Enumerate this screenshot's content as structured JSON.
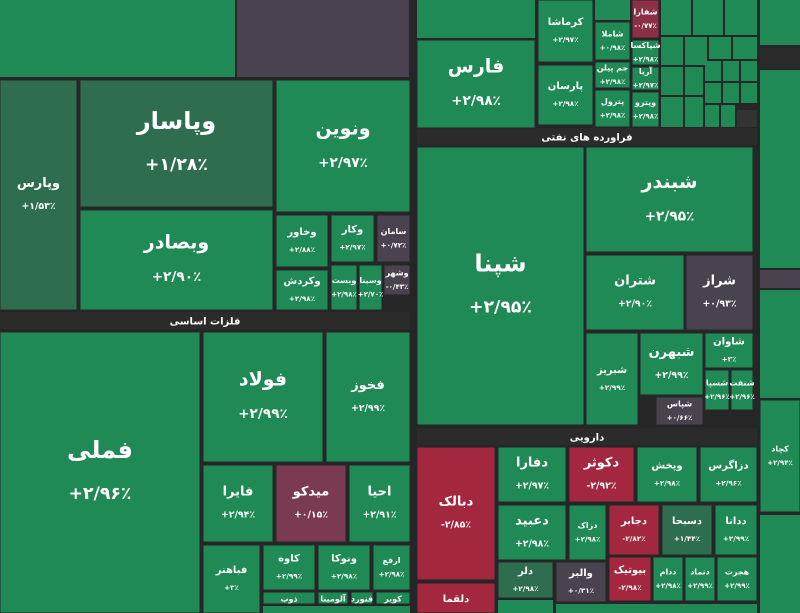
{
  "sections": [
    {
      "label": "فراورده های نفتی"
    },
    {
      "label": "فلزات اساسی"
    },
    {
      "label": "دارویی"
    }
  ],
  "tiles": [
    {
      "name": "وپارس",
      "change": "+۱/۵۳٪",
      "color": "#2e6e4f"
    },
    {
      "name": "وپاسار",
      "change": "+۱/۲۸٪",
      "color": "#2e6e4f"
    },
    {
      "name": "ونوین",
      "change": "+۲/۹۷٪",
      "color": "#1f8a55"
    },
    {
      "name": "وبصادر",
      "change": "+۲/۹۰٪",
      "color": "#1f8a55"
    },
    {
      "name": "وخاور",
      "change": "+۲/۸۸٪",
      "color": "#1f8a55"
    },
    {
      "name": "وکار",
      "change": "+۲/۹۷٪",
      "color": "#1f8a55"
    },
    {
      "name": "سامان",
      "change": "+۰/۷۲٪",
      "color": "#4b4250"
    },
    {
      "name": "وکردش",
      "change": "+۲/۹۸٪",
      "color": "#1f8a55"
    },
    {
      "name": "وبست",
      "change": "+۲/۹۸٪",
      "color": "#1f8a55"
    },
    {
      "name": "وسینا",
      "change": "+۲/۷۰٪",
      "color": "#1f8a55"
    },
    {
      "name": "وشهر",
      "change": "-۰/۴۳٪",
      "color": "#4b4250"
    },
    {
      "name": "فملی",
      "change": "+۲/۹۶٪",
      "color": "#1f8a55"
    },
    {
      "name": "فولاد",
      "change": "+۲/۹۹٪",
      "color": "#1f8a55"
    },
    {
      "name": "فخوز",
      "change": "+۲/۹۹٪",
      "color": "#1f8a55"
    },
    {
      "name": "فایرا",
      "change": "+۲/۹۴٪",
      "color": "#1f8a55"
    },
    {
      "name": "میدکو",
      "change": "+۰/۱۵٪",
      "color": "#7a3a52"
    },
    {
      "name": "احیا",
      "change": "+۲/۹۱٪",
      "color": "#1f8a55"
    },
    {
      "name": "فباهنر",
      "change": "+۳٪",
      "color": "#1f8a55"
    },
    {
      "name": "کاوه",
      "change": "+۲/۹۹٪",
      "color": "#1f8a55"
    },
    {
      "name": "ونوکا",
      "change": "+۲/۹۸٪",
      "color": "#1f8a55"
    },
    {
      "name": "ارفع",
      "change": "+۲/۹۸٪",
      "color": "#1f8a55"
    },
    {
      "name": "فارس",
      "change": "+۲/۹۸٪",
      "color": "#1f8a55"
    },
    {
      "name": "کرماشا",
      "change": "+۲/۹۷٪",
      "color": "#1f8a55"
    },
    {
      "name": "شفارا",
      "change": "-۰/۷۷٪",
      "color": "#8b2f45"
    },
    {
      "name": "شاملا",
      "change": "+۰/۹۸٪",
      "color": "#1f8a55"
    },
    {
      "name": "شپاکسا",
      "change": "+۲/۹۸٪",
      "color": "#1f8a55"
    },
    {
      "name": "جم پیلن",
      "change": "+۲/۹۸٪",
      "color": "#1f8a55"
    },
    {
      "name": "پارسان",
      "change": "+۲/۹۸٪",
      "color": "#1f8a55"
    },
    {
      "name": "آریا",
      "change": "+۲/۹۷٪",
      "color": "#1f8a55"
    },
    {
      "name": "پترول",
      "change": "+۲/۹۸٪",
      "color": "#1f8a55"
    },
    {
      "name": "وپترو",
      "change": "+۲/۹۸٪",
      "color": "#1f8a55"
    },
    {
      "name": "شپنا",
      "change": "+۲/۹۵٪",
      "color": "#1f8a55"
    },
    {
      "name": "شبندر",
      "change": "+۲/۹۵٪",
      "color": "#1f8a55"
    },
    {
      "name": "شتران",
      "change": "+۲/۹۰٪",
      "color": "#1f8a55"
    },
    {
      "name": "شراز",
      "change": "+۰/۹۳٪",
      "color": "#4b4250"
    },
    {
      "name": "شبریز",
      "change": "+۲/۹۹٪",
      "color": "#1f8a55"
    },
    {
      "name": "شبهرن",
      "change": "+۲/۹۹٪",
      "color": "#1f8a55"
    },
    {
      "name": "شاوان",
      "change": "+۳٪",
      "color": "#1f8a55"
    },
    {
      "name": "شسپا",
      "change": "+۲/۹۶٪",
      "color": "#1f8a55"
    },
    {
      "name": "شنفت",
      "change": "+۲/۹۶٪",
      "color": "#1f8a55"
    },
    {
      "name": "شپاس",
      "change": "+۰/۶۶٪",
      "color": "#4b4250"
    },
    {
      "name": "کچاد",
      "change": "+۲/۹۴٪",
      "color": "#1f8a55"
    },
    {
      "name": "دبالک",
      "change": "-۲/۸۵٪",
      "color": "#a3283f"
    },
    {
      "name": "دفارا",
      "change": "+۲/۹۷٪",
      "color": "#1f8a55"
    },
    {
      "name": "دکوثر",
      "change": "-۲/۹۲٪",
      "color": "#a3283f"
    },
    {
      "name": "وپخش",
      "change": "+۲/۹۸٪",
      "color": "#1f8a55"
    },
    {
      "name": "دزاگرس",
      "change": "+۲/۹۶٪",
      "color": "#1f8a55"
    },
    {
      "name": "دعبید",
      "change": "+۲/۹۸٪",
      "color": "#1f8a55"
    },
    {
      "name": "دزاک",
      "change": "+۲/۹۸٪",
      "color": "#1f8a55"
    },
    {
      "name": "دجابر",
      "change": "-۲/۸۲٪",
      "color": "#a3283f"
    },
    {
      "name": "دسبحا",
      "change": "+۱/۴۴٪",
      "color": "#2e6e4f"
    },
    {
      "name": "ددانا",
      "change": "+۲/۹۹٪",
      "color": "#1f8a55"
    },
    {
      "name": "دلر",
      "change": "+۲/۹۸٪",
      "color": "#2e6e4f"
    },
    {
      "name": "والبر",
      "change": "+۰/۳۱٪",
      "color": "#4b4250"
    },
    {
      "name": "بیوتیک",
      "change": "-۲/۹۸٪",
      "color": "#a3283f"
    },
    {
      "name": "ددام",
      "change": "+۲/۹۸٪",
      "color": "#1f8a55"
    },
    {
      "name": "دتماد",
      "change": "+۲/۹۹٪",
      "color": "#1f8a55"
    },
    {
      "name": "هجرت",
      "change": "+۲/۹۹٪",
      "color": "#1f8a55"
    },
    {
      "name": "ذوب",
      "color": "#1f8a55"
    },
    {
      "name": "آلومینا",
      "color": "#1f8a55"
    },
    {
      "name": "فنورد",
      "color": "#1f8a55"
    },
    {
      "name": "کویر",
      "color": "#1f8a55"
    },
    {
      "name": "دلقما",
      "color": "#a3283f"
    }
  ]
}
